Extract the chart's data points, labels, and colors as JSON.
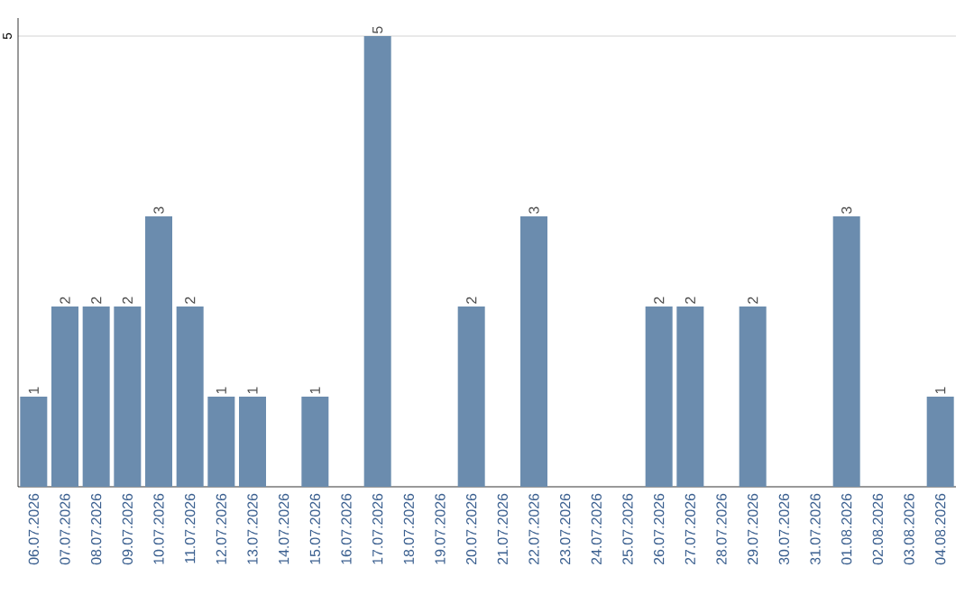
{
  "chart_data": {
    "type": "bar",
    "categories": [
      "06.07.2026",
      "07.07.2026",
      "08.07.2026",
      "09.07.2026",
      "10.07.2026",
      "11.07.2026",
      "12.07.2026",
      "13.07.2026",
      "14.07.2026",
      "15.07.2026",
      "16.07.2026",
      "17.07.2026",
      "18.07.2026",
      "19.07.2026",
      "20.07.2026",
      "21.07.2026",
      "22.07.2026",
      "23.07.2026",
      "24.07.2026",
      "25.07.2026",
      "26.07.2026",
      "27.07.2026",
      "28.07.2026",
      "29.07.2026",
      "30.07.2026",
      "31.07.2026",
      "01.08.2026",
      "02.08.2026",
      "03.08.2026",
      "04.08.2026"
    ],
    "values": [
      1,
      2,
      2,
      2,
      3,
      2,
      1,
      1,
      0,
      1,
      0,
      5,
      0,
      0,
      2,
      0,
      3,
      0,
      0,
      0,
      2,
      2,
      0,
      2,
      0,
      0,
      3,
      0,
      0,
      1
    ],
    "value_labels": [
      "1",
      "2",
      "2",
      "2",
      "3",
      "2",
      "1",
      "1",
      null,
      "1",
      null,
      "5",
      null,
      null,
      "2",
      null,
      "3",
      null,
      null,
      null,
      "2",
      "2",
      null,
      "2",
      null,
      null,
      "3",
      null,
      null,
      "1"
    ],
    "color": "#6b8cae",
    "ylim": [
      0,
      5.2
    ],
    "yticks": [
      5
    ],
    "grid": "y"
  }
}
